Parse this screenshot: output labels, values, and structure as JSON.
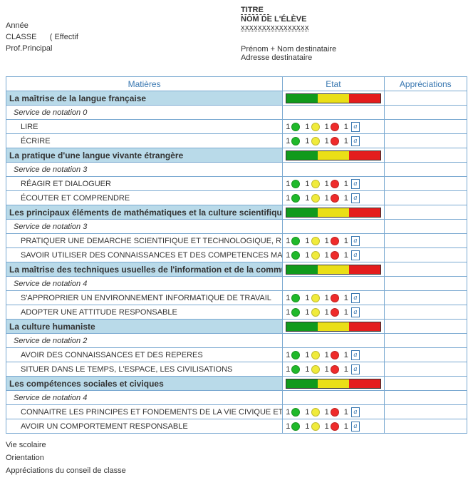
{
  "header": {
    "titre_label": "TITRE",
    "nom_label": "NOM DE L'ÉLÈVE",
    "nom_placeholder": "xxxxxxxxxxxxxxxx",
    "annee": "Année",
    "classe": "CLASSE",
    "effectif": "( Effectif",
    "prof": "Prof.Principal",
    "dest_nom": "Prénom + Nom destinataire",
    "dest_adr": "Adresse destinataire"
  },
  "columns": {
    "matieres": "Matières",
    "etat": "Etat",
    "appreciations": "Appréciations"
  },
  "dot_values": {
    "g": 1,
    "y": 1,
    "r": 1
  },
  "colors": {
    "bar_green": "#119a1c",
    "bar_yellow": "#eadf17",
    "bar_red": "#e41d1d",
    "dot_green": "#1fb92a",
    "dot_yellow": "#f0eb3b",
    "dot_red": "#ef2b2b",
    "header_text": "#3a78b1",
    "border": "#7aa9d1",
    "cat_bg": "#b9dae9"
  },
  "sections": [
    {
      "title": "La maîtrise de la langue française",
      "service": "Service de notation 0",
      "items": [
        "LIRE",
        "ÉCRIRE"
      ]
    },
    {
      "title": "La pratique d'une langue vivante étrangère",
      "service": "Service de notation 3",
      "items": [
        "RÉAGIR ET DIALOGUER",
        "ÉCOUTER ET COMPRENDRE"
      ]
    },
    {
      "title": "Les principaux éléments de mathématiques et la culture scientifique et technologique",
      "service": "Service de notation 3",
      "items": [
        "PRATIQUER UNE DEMARCHE SCIENTIFIQUE ET TECHNOLOGIQUE, RESOUDRE DES PROBLEMES",
        "SAVOIR UTILISER DES CONNAISSANCES ET DES COMPETENCES MATHEMATIQUES"
      ]
    },
    {
      "title": "La maîtrise des techniques usuelles de l'information et de la communication",
      "service": "Service de notation 4",
      "items": [
        "S'APPROPRIER UN ENVIRONNEMENT INFORMATIQUE DE TRAVAIL",
        "ADOPTER UNE ATTITUDE RESPONSABLE"
      ]
    },
    {
      "title": "La culture humaniste",
      "service": "Service de notation 2",
      "items": [
        "AVOIR DES CONNAISSANCES ET DES REPERES",
        "SITUER DANS LE TEMPS, L'ESPACE, LES CIVILISATIONS"
      ]
    },
    {
      "title": "Les compétences sociales et civiques",
      "service": "Service de notation 4",
      "items": [
        "CONNAITRE LES PRINCIPES ET FONDEMENTS DE LA VIE CIVIQUE ET SOCIALE",
        "AVOIR UN COMPORTEMENT RESPONSABLE"
      ]
    }
  ],
  "footer": {
    "vie": "Vie scolaire",
    "orientation": "Orientation",
    "conseil": "Appréciations du conseil de classe"
  }
}
